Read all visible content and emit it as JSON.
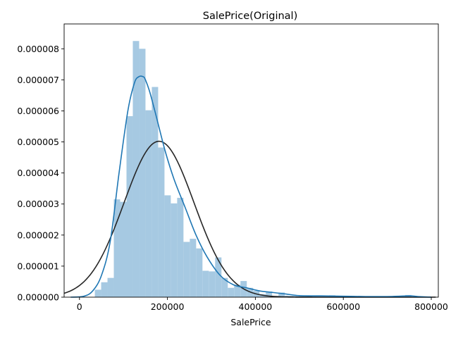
{
  "chart_data": {
    "type": "bar",
    "title": "SalePrice(Original)",
    "xlabel": "SalePrice",
    "ylabel": "",
    "xlim": [
      -34900,
      816000
    ],
    "ylim": [
      0,
      8.8e-06
    ],
    "x_ticks": [
      0,
      200000,
      400000,
      600000,
      800000
    ],
    "x_tick_labels": [
      "0",
      "200000",
      "400000",
      "600000",
      "800000"
    ],
    "y_ticks": [
      0,
      1e-06,
      2e-06,
      3e-06,
      4e-06,
      5e-06,
      6e-06,
      7e-06,
      8e-06
    ],
    "y_tick_labels": [
      "0.000000",
      "0.000001",
      "0.000002",
      "0.000003",
      "0.000004",
      "0.000005",
      "0.000006",
      "0.000007",
      "0.000008"
    ],
    "grid": false,
    "colors": {
      "histogram": "#a6c9e2",
      "kde": "#1f77b4",
      "normal_fit": "#262626"
    },
    "series": [
      {
        "kind": "histogram",
        "bin_edges": [
          34900,
          49300,
          63700,
          78100,
          92500,
          106900,
          121300,
          135700,
          150100,
          164500,
          178900,
          193300,
          207700,
          222100,
          236500,
          250900,
          265300,
          279700,
          294100,
          308500,
          322900,
          337300,
          351700,
          366100,
          380500,
          394900,
          409300,
          423700,
          438100,
          452500,
          466900,
          481300,
          495700,
          510100,
          524500,
          538900,
          553300,
          567700,
          582100,
          596500,
          610900,
          625300,
          639700,
          654100,
          668500,
          682900,
          697300,
          711700,
          726100,
          740500,
          754900
        ],
        "values": [
          2.4e-07,
          4.8e-07,
          6.2e-07,
          3.15e-06,
          3.07e-06,
          5.83e-06,
          8.25e-06,
          8e-06,
          6.02e-06,
          6.77e-06,
          4.82e-06,
          3.28e-06,
          3.02e-06,
          3.2e-06,
          1.78e-06,
          1.88e-06,
          1.57e-06,
          8.5e-07,
          8.3e-07,
          1.28e-06,
          6.2e-07,
          3e-07,
          4e-07,
          5.2e-07,
          3e-07,
          2e-07,
          1e-07,
          1.8e-07,
          4e-08,
          1.5e-07,
          5e-08,
          5e-08,
          3e-08,
          2e-08,
          3e-08,
          2e-08,
          2e-08,
          6e-08,
          3e-08,
          3e-08,
          4e-08,
          3e-08,
          2e-08,
          2e-08,
          2e-08,
          1e-08,
          1e-08,
          1e-08,
          2e-08,
          7e-08
        ]
      },
      {
        "kind": "kde_line",
        "x": [
          -20000,
          10000,
          30000,
          50000,
          70000,
          90000,
          110000,
          125000,
          135000,
          145000,
          150000,
          160000,
          175000,
          195000,
          215000,
          240000,
          265000,
          290000,
          320000,
          350000,
          380000,
          410000,
          440000,
          470000,
          500000,
          550000,
          600000,
          650000,
          700000,
          750000,
          770000,
          800000
        ],
        "y": [
          0,
          3e-08,
          2e-07,
          7e-07,
          1.8e-06,
          4e-06,
          6e-06,
          6.9e-06,
          7.1e-06,
          7.1e-06,
          7e-06,
          6.6e-06,
          5.8e-06,
          4.7e-06,
          3.8e-06,
          2.9e-06,
          2e-06,
          1.3e-06,
          7e-07,
          4e-07,
          3e-07,
          2e-07,
          1.5e-07,
          1e-07,
          5e-08,
          4e-08,
          3e-08,
          2e-08,
          2e-08,
          4e-08,
          2e-08,
          0
        ]
      },
      {
        "kind": "normal_fit_line",
        "mean": 180921,
        "std": 79443,
        "x_range": [
          -34900,
          810000
        ]
      }
    ]
  }
}
